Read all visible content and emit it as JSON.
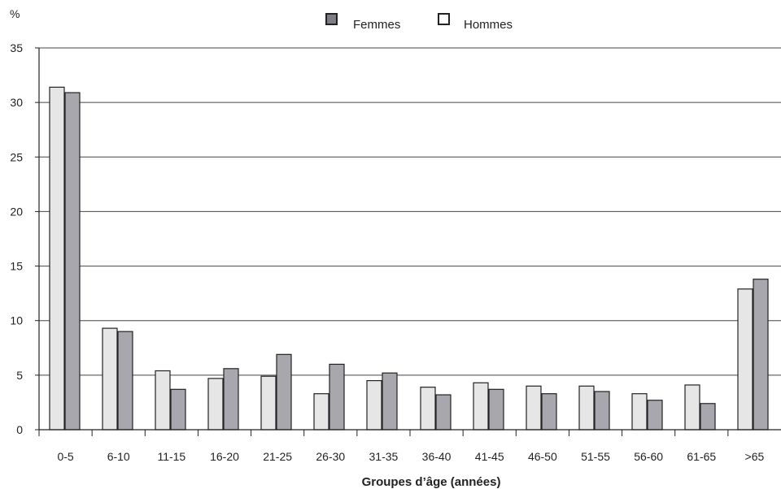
{
  "chart_data": {
    "type": "bar",
    "ylabel": "%",
    "xlabel": "Groupes d’âge (années)",
    "ylim": [
      0,
      35
    ],
    "yticks": [
      0,
      5,
      10,
      15,
      20,
      25,
      30,
      35
    ],
    "grid": true,
    "legend_position": "top-center",
    "categories": [
      "0-5",
      "6-10",
      "11-15",
      "16-20",
      "21-25",
      "26-30",
      "31-35",
      "36-40",
      "41-45",
      "46-50",
      "51-55",
      "56-60",
      "61-65",
      ">65"
    ],
    "series": [
      {
        "name": "Femmes",
        "color": "#a7a7ad",
        "values": [
          30.9,
          9.0,
          3.7,
          5.6,
          6.9,
          6.0,
          5.2,
          3.2,
          3.7,
          3.3,
          3.5,
          2.7,
          2.4,
          13.8
        ]
      },
      {
        "name": "Hommes",
        "color": "#e6e6e6",
        "values": [
          31.4,
          9.3,
          5.4,
          4.7,
          4.9,
          3.3,
          4.5,
          3.9,
          4.3,
          4.0,
          4.0,
          3.3,
          4.1,
          12.9
        ]
      }
    ],
    "legend": [
      {
        "name": "Femmes",
        "color": "#a7a7ad"
      },
      {
        "name": "Hommes",
        "color": "#e6e6e6"
      }
    ]
  }
}
